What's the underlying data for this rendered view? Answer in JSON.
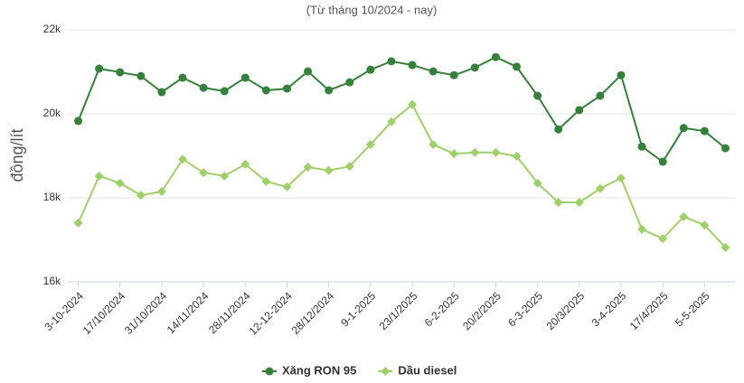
{
  "chart_data": {
    "type": "line",
    "subtitle": "(Từ tháng 10/2024 - nay)",
    "y_label": "đồng/lít",
    "categories": [
      "3-10-2024",
      null,
      "17/10/2024",
      null,
      "31/10/2024",
      null,
      "14/11/2024",
      null,
      "28/11/2024",
      null,
      "12-12-2024",
      null,
      "28/12/2024",
      null,
      "9-1-2025",
      null,
      "23/1/2025",
      null,
      "6-2-2025",
      null,
      "20/2/2025",
      null,
      "6-3-2025",
      null,
      "20/3/2025",
      null,
      "3-4-2025",
      null,
      "17/4/2025",
      null,
      "5-5-2025",
      null
    ],
    "series": [
      {
        "name": "Xăng RON 95",
        "color": "#35803a",
        "marker": "circle",
        "values": [
          19830,
          21075,
          20990,
          20900,
          20516,
          20860,
          20620,
          20540,
          20860,
          20560,
          20600,
          21010,
          20560,
          20750,
          21050,
          21250,
          21160,
          21010,
          20920,
          21100,
          21350,
          21120,
          20430,
          19630,
          20090,
          20430,
          20920,
          19220,
          18860,
          19660,
          19590,
          19180
        ]
      },
      {
        "name": "Dầu diesel",
        "color": "#9fcf6a",
        "marker": "diamond",
        "values": [
          17400,
          18520,
          18350,
          18060,
          18150,
          18920,
          18600,
          18520,
          18800,
          18390,
          18260,
          18730,
          18650,
          18750,
          19270,
          19810,
          20220,
          19270,
          19050,
          19080,
          19080,
          18990,
          18350,
          17890,
          17890,
          18220,
          18470,
          17250,
          17030,
          17550,
          17350,
          16820
        ]
      }
    ],
    "ylim": [
      16000,
      22000
    ],
    "yticks": [
      {
        "value": 16000,
        "label": "16k"
      },
      {
        "value": 18000,
        "label": "18k"
      },
      {
        "value": 20000,
        "label": "20k"
      },
      {
        "value": 22000,
        "label": "22k"
      }
    ],
    "grid": true,
    "legend": "bottom"
  }
}
